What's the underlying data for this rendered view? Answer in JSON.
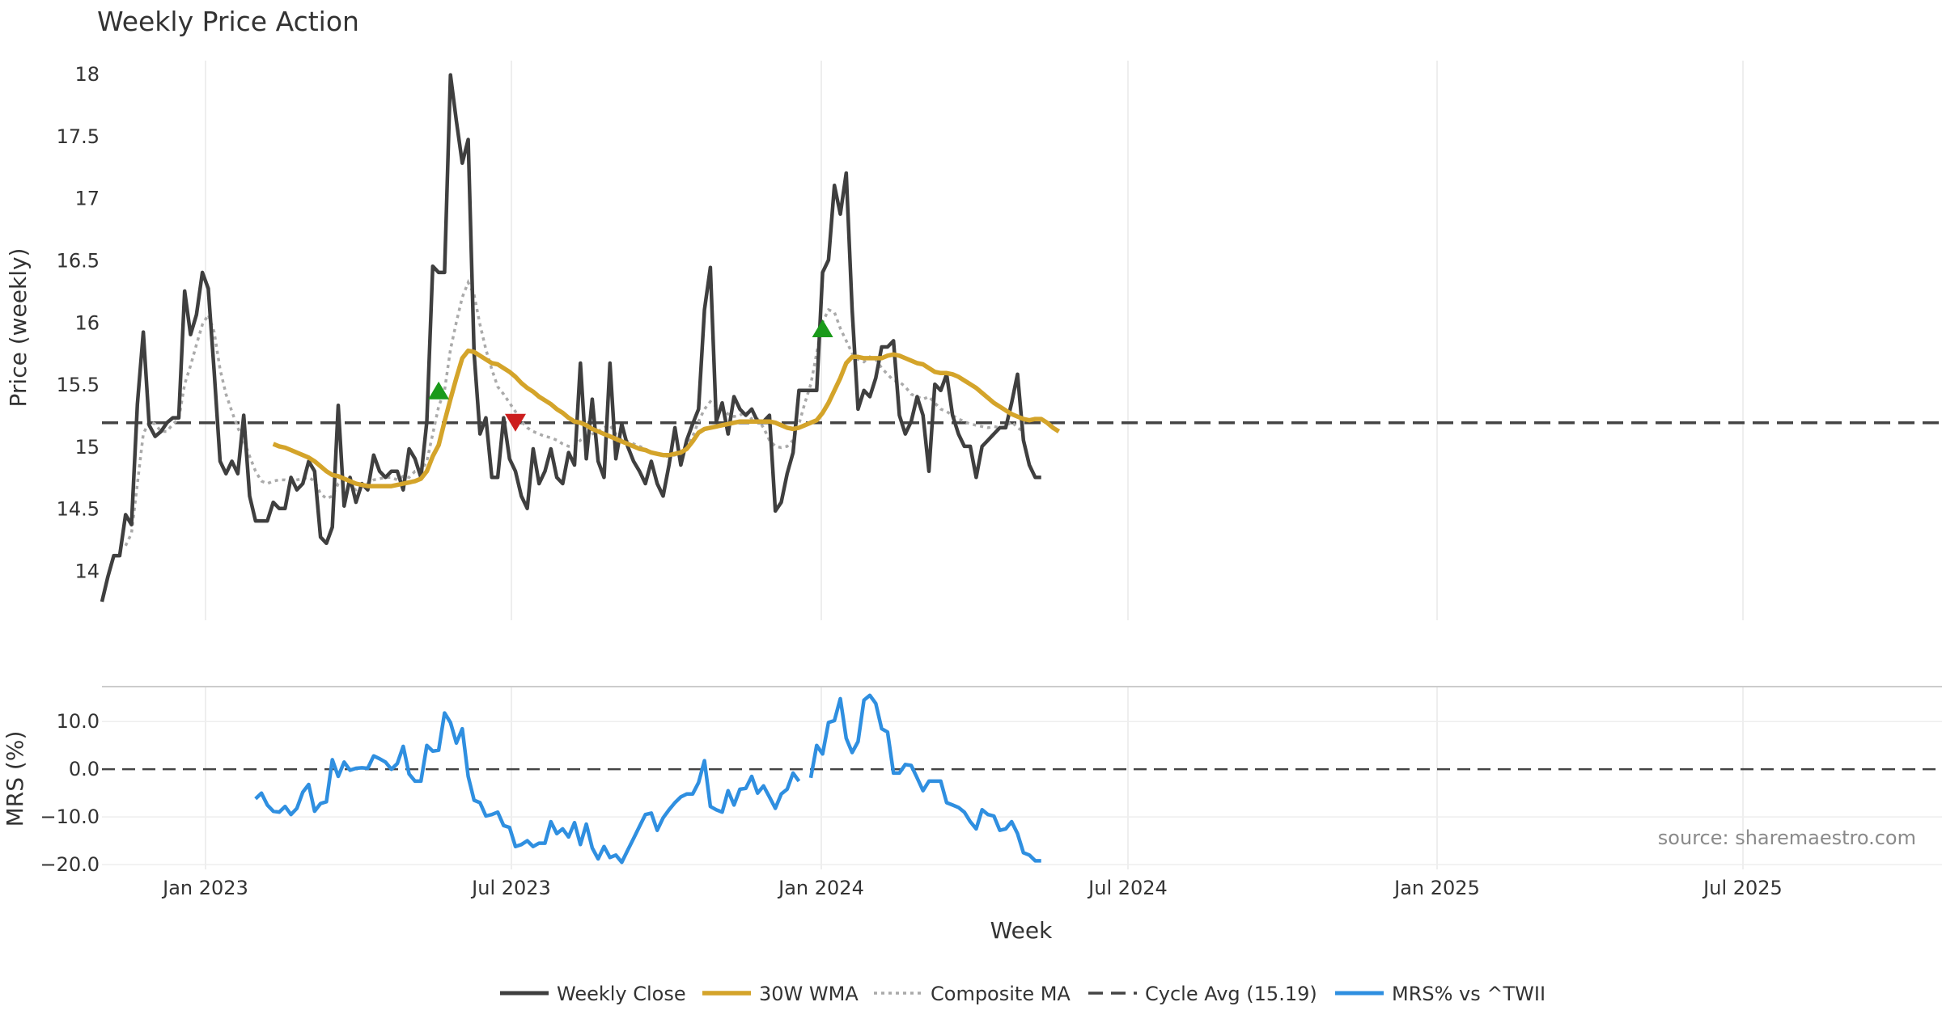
{
  "chart_data": {
    "type": "line",
    "title": "Weekly Price Action",
    "source_note": "source: sharemaestro.com",
    "xlabel": "Week",
    "x_ticks": [
      "Jan 2023",
      "Jul 2023",
      "Jan 2024",
      "Jul 2024",
      "Jan 2025",
      "Jul 2025"
    ],
    "price_panel": {
      "ylabel": "Price (weekly)",
      "ylim": [
        13.6,
        18.3
      ],
      "y_ticks": [
        14,
        14.5,
        15,
        15.5,
        16,
        16.5,
        17,
        17.5,
        18
      ],
      "y_tick_labels": [
        "14",
        "14.5",
        "15",
        "15.5",
        "16",
        "16.5",
        "17",
        "17.5",
        "18"
      ],
      "cycle_avg": 15.19,
      "series": [
        {
          "name": "Weekly Close",
          "start_week": 0,
          "values": [
            13.75,
            13.95,
            14.12,
            14.12,
            14.45,
            14.37,
            15.34,
            15.92,
            15.17,
            15.08,
            15.12,
            15.19,
            15.23,
            15.23,
            16.25,
            15.9,
            16.06,
            16.4,
            16.27,
            15.6,
            14.88,
            14.78,
            14.88,
            14.78,
            15.25,
            14.6,
            14.4,
            14.4,
            14.4,
            14.55,
            14.5,
            14.5,
            14.75,
            14.65,
            14.7,
            14.88,
            14.8,
            14.27,
            14.22,
            14.35,
            15.33,
            14.52,
            14.75,
            14.55,
            14.7,
            14.65,
            14.93,
            14.8,
            14.75,
            14.8,
            14.8,
            14.65,
            14.98,
            14.9,
            14.75,
            15.2,
            16.45,
            16.4,
            16.4,
            17.99,
            17.62,
            17.28,
            17.47,
            15.75,
            15.1,
            15.23,
            14.75,
            14.75,
            15.23,
            14.9,
            14.8,
            14.6,
            14.5,
            14.98,
            14.7,
            14.8,
            14.98,
            14.75,
            14.7,
            14.95,
            14.85,
            15.67,
            14.9,
            15.38,
            14.88,
            14.75,
            15.67,
            14.9,
            15.18,
            15.0,
            14.88,
            14.8,
            14.7,
            14.88,
            14.7,
            14.6,
            14.85,
            15.15,
            14.85,
            15.05,
            15.18,
            15.3,
            16.1,
            16.44,
            15.2,
            15.35,
            15.1,
            15.4,
            15.3,
            15.25,
            15.3,
            15.2,
            15.2,
            15.25,
            14.48,
            14.55,
            14.78,
            14.95,
            15.45,
            15.45,
            15.45,
            15.45,
            16.4,
            16.5,
            17.1,
            16.87,
            17.2,
            16.1,
            15.3,
            15.45,
            15.4,
            15.55,
            15.8,
            15.8,
            15.85,
            15.25,
            15.1,
            15.2,
            15.4,
            15.25,
            14.8,
            15.5,
            15.45,
            15.58,
            15.25,
            15.1,
            15.0,
            15.0,
            14.75,
            15.0,
            15.05,
            15.1,
            15.15,
            15.15,
            15.35,
            15.58,
            15.05,
            14.85,
            14.75,
            14.75
          ]
        },
        {
          "name": "30W WMA",
          "start_week": 29,
          "values": [
            15.02,
            15.0,
            14.99,
            14.97,
            14.95,
            14.93,
            14.91,
            14.88,
            14.84,
            14.8,
            14.77,
            14.76,
            14.74,
            14.72,
            14.7,
            14.69,
            14.68,
            14.68,
            14.68,
            14.68,
            14.68,
            14.69,
            14.7,
            14.71,
            14.72,
            14.74,
            14.8,
            14.92,
            15.01,
            15.2,
            15.38,
            15.55,
            15.71,
            15.77,
            15.76,
            15.73,
            15.7,
            15.67,
            15.66,
            15.63,
            15.6,
            15.56,
            15.51,
            15.47,
            15.44,
            15.4,
            15.37,
            15.34,
            15.3,
            15.27,
            15.23,
            15.2,
            15.19,
            15.17,
            15.14,
            15.12,
            15.1,
            15.08,
            15.06,
            15.04,
            15.02,
            15.0,
            14.98,
            14.97,
            14.95,
            14.94,
            14.93,
            14.93,
            14.94,
            14.95,
            14.98,
            15.04,
            15.11,
            15.14,
            15.15,
            15.16,
            15.17,
            15.18,
            15.19,
            15.2,
            15.2,
            15.2,
            15.2,
            15.2,
            15.2,
            15.19,
            15.17,
            15.15,
            15.14,
            15.15,
            15.17,
            15.19,
            15.21,
            15.27,
            15.35,
            15.45,
            15.55,
            15.67,
            15.72,
            15.72,
            15.71,
            15.71,
            15.71,
            15.71,
            15.73,
            15.74,
            15.73,
            15.71,
            15.69,
            15.67,
            15.66,
            15.63,
            15.6,
            15.59,
            15.59,
            15.58,
            15.56,
            15.53,
            15.5,
            15.47,
            15.43,
            15.39,
            15.35,
            15.32,
            15.29,
            15.26,
            15.24,
            15.22,
            15.21,
            15.22,
            15.22,
            15.19,
            15.15,
            15.12
          ]
        },
        {
          "name": "Composite MA",
          "start_week": 4,
          "values": [
            14.2,
            14.3,
            14.7,
            15.1,
            15.2,
            15.18,
            15.12,
            15.12,
            15.18,
            15.22,
            15.5,
            15.65,
            15.82,
            15.98,
            16.06,
            15.92,
            15.62,
            15.42,
            15.28,
            15.15,
            15.05,
            14.92,
            14.8,
            14.72,
            14.7,
            14.72,
            14.73,
            14.73,
            14.72,
            14.73,
            14.74,
            14.75,
            14.72,
            14.62,
            14.58,
            14.6,
            14.7,
            14.72,
            14.68,
            14.65,
            14.68,
            14.7,
            14.73,
            14.74,
            14.75,
            14.75,
            14.73,
            14.76,
            14.75,
            14.8,
            14.8,
            14.88,
            15.1,
            15.32,
            15.45,
            15.78,
            16.0,
            16.2,
            16.32,
            16.22,
            15.98,
            15.78,
            15.62,
            15.48,
            15.42,
            15.35,
            15.28,
            15.2,
            15.15,
            15.12,
            15.1,
            15.08,
            15.07,
            15.05,
            15.02,
            15.0,
            15.0,
            15.05,
            15.08,
            15.1,
            15.12,
            15.15,
            15.17,
            15.1,
            15.05,
            15.04,
            15.02,
            15.0,
            14.98,
            14.95,
            14.94,
            14.92,
            14.92,
            14.93,
            14.95,
            15.0,
            15.08,
            15.2,
            15.3,
            15.36,
            15.32,
            15.3,
            15.26,
            15.24,
            15.25,
            15.28,
            15.22,
            15.22,
            15.15,
            15.05,
            15.0,
            14.99,
            15.0,
            15.05,
            15.18,
            15.35,
            15.5,
            15.75,
            16.0,
            16.1,
            16.08,
            15.95,
            15.85,
            15.75,
            15.7,
            15.68,
            15.72,
            15.7,
            15.63,
            15.58,
            15.53,
            15.52,
            15.48,
            15.42,
            15.4,
            15.38,
            15.4,
            15.35,
            15.3,
            15.28,
            15.25,
            15.22,
            15.2,
            15.18,
            15.17,
            15.16,
            15.15,
            15.16,
            15.15,
            15.16,
            15.2,
            15.15,
            15.12
          ]
        }
      ],
      "signals": [
        {
          "type": "buy",
          "week": 57,
          "value": 15.45
        },
        {
          "type": "sell",
          "week": 70,
          "value": 15.19
        },
        {
          "type": "buy",
          "week": 122,
          "value": 15.95
        }
      ]
    },
    "mrs_panel": {
      "ylabel": "MRS (%)",
      "ylim": [
        -21,
        17.5
      ],
      "y_ticks": [
        10,
        0,
        -10,
        -20
      ],
      "y_tick_labels": [
        "10.0",
        "0.0",
        "−10.0",
        "−20.0"
      ],
      "zero_line": 0,
      "series": [
        {
          "name": "MRS% vs ^TWII",
          "start_week": 26,
          "values": [
            -6.2,
            -5.0,
            -7.5,
            -8.8,
            -9.0,
            -7.8,
            -9.5,
            -8.2,
            -4.8,
            -3.2,
            -8.8,
            -7.2,
            -6.8,
            2.0,
            -1.5,
            1.5,
            -0.2,
            0.2,
            0.3,
            0.2,
            2.8,
            2.2,
            1.5,
            0.0,
            1.2,
            4.8,
            -1.0,
            -2.5,
            -2.5,
            5.0,
            3.8,
            4.0,
            11.8,
            9.8,
            5.5,
            8.5,
            -1.5,
            -6.5,
            -7.0,
            -9.8,
            -9.5,
            -9.0,
            -11.8,
            -12.2,
            -16.2,
            -15.8,
            -15.0,
            -16.2,
            -15.5,
            -15.5,
            -11.0,
            -13.5,
            -12.5,
            -14.2,
            -11.2,
            -15.8,
            -11.5,
            -16.5,
            -18.8,
            -16.2,
            -18.5,
            -18.0,
            -19.5,
            -17.0,
            -14.5,
            -12.0,
            -9.5,
            -9.2,
            -12.8,
            -10.2,
            -8.5,
            -7.0,
            -5.8,
            -5.2,
            -5.2,
            -2.8,
            1.8,
            -7.8,
            -8.5,
            -9.0,
            -4.5,
            -7.5,
            -4.2,
            -4.0,
            -1.5,
            -5.0,
            -3.5,
            -5.8,
            -8.2,
            -5.2,
            -4.2,
            -0.8,
            -2.5,
            null,
            -1.8,
            5.0,
            3.2,
            9.8,
            10.2,
            14.8,
            6.5,
            3.5,
            5.8,
            14.5,
            15.5,
            13.8,
            8.5,
            7.8,
            -0.8,
            -0.8,
            1.0,
            0.8,
            -1.8,
            -4.5,
            -2.5,
            -2.5,
            -2.5,
            -7.0,
            -7.5,
            -8.0,
            -9.0,
            -11.0,
            -12.5,
            -8.5,
            -9.5,
            -9.8,
            -12.8,
            -12.5,
            -11.0,
            -13.5,
            -17.5,
            -18.0,
            -19.2,
            -19.2
          ]
        }
      ]
    },
    "legend": {
      "placement": "bottom-center",
      "entries": [
        "Weekly Close",
        "30W WMA",
        "Composite MA",
        "Cycle Avg (15.19)",
        "MRS% vs ^TWII"
      ]
    },
    "colors": {
      "close": "#3f3f3f",
      "wma": "#d4a42a",
      "composite": "#aaaaaa",
      "cycle": "#444444",
      "mrs": "#2f8fe0",
      "buy": "#1a9a1a",
      "sell": "#cc1e1e",
      "grid": "#e8e8e8",
      "text": "#333333",
      "source": "#8a8a8a"
    }
  }
}
